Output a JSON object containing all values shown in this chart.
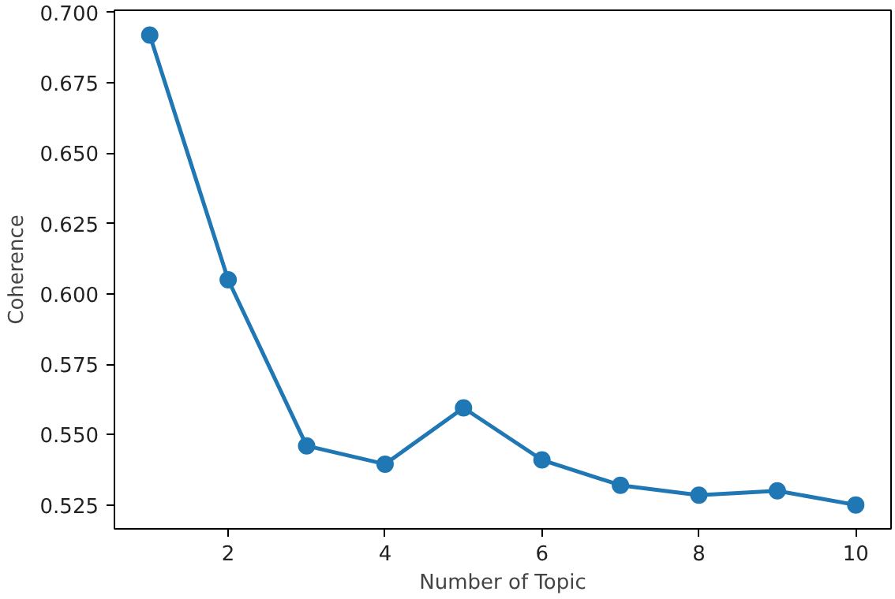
{
  "chart_data": {
    "type": "line",
    "xlabel": "Number of Topic",
    "ylabel": "Coherence",
    "x": [
      1,
      2,
      3,
      4,
      5,
      6,
      7,
      8,
      9,
      10
    ],
    "series": [
      {
        "color": "#1f77b4",
        "values": [
          0.692,
          0.605,
          0.546,
          0.5395,
          0.5595,
          0.541,
          0.532,
          0.5285,
          0.53,
          0.525
        ]
      }
    ],
    "xlim": [
      0.55,
      10.45
    ],
    "xticks": [
      2,
      4,
      6,
      8,
      10
    ],
    "ylim": [
      0.5165,
      0.7008
    ],
    "yticks": [
      {
        "value": 0.525,
        "label": "0.525"
      },
      {
        "value": 0.55,
        "label": "0.550"
      },
      {
        "value": 0.575,
        "label": "0.575"
      },
      {
        "value": 0.6,
        "label": "0.600"
      },
      {
        "value": 0.625,
        "label": "0.625"
      },
      {
        "value": 0.65,
        "label": "0.650"
      },
      {
        "value": 0.675,
        "label": "0.675"
      },
      {
        "value": 0.7,
        "label": "0.700"
      }
    ],
    "marker": "circle",
    "line_style": "solid",
    "grid": false
  }
}
